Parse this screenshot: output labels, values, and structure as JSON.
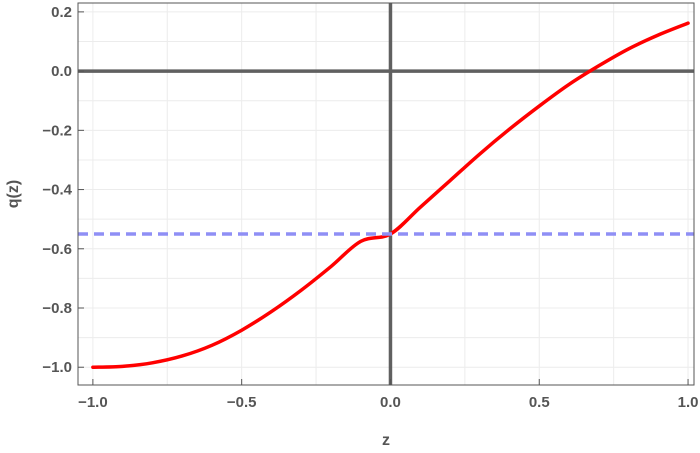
{
  "chart_data": {
    "type": "line",
    "title": "",
    "xlabel": "z",
    "ylabel": "q(z)",
    "xlim": [
      -1.05,
      1.02
    ],
    "ylim": [
      -1.06,
      0.23
    ],
    "grid": true,
    "x_ticks": [
      {
        "value": -1.0,
        "label": "−1.0"
      },
      {
        "value": -0.5,
        "label": "−0.5"
      },
      {
        "value": 0.0,
        "label": "0.0"
      },
      {
        "value": 0.5,
        "label": "0.5"
      },
      {
        "value": 1.0,
        "label": "1.0"
      }
    ],
    "y_ticks": [
      {
        "value": 0.2,
        "label": "0.2"
      },
      {
        "value": 0.0,
        "label": "0.0"
      },
      {
        "value": -0.2,
        "label": "−0.2"
      },
      {
        "value": -0.4,
        "label": "−0.4"
      },
      {
        "value": -0.6,
        "label": "−0.6"
      },
      {
        "value": -0.8,
        "label": "−0.8"
      },
      {
        "value": -1.0,
        "label": "−1.0"
      }
    ],
    "series": [
      {
        "color": "#ff0000",
        "style": "solid",
        "x": [
          -1.0,
          -0.9,
          -0.8,
          -0.7,
          -0.6,
          -0.5,
          -0.4,
          -0.3,
          -0.2,
          -0.1,
          0.0,
          0.1,
          0.2,
          0.3,
          0.4,
          0.5,
          0.6,
          0.7,
          0.8,
          0.9,
          1.0
        ],
        "y": [
          -1.0,
          -0.997,
          -0.985,
          -0.962,
          -0.926,
          -0.875,
          -0.812,
          -0.74,
          -0.66,
          -0.575,
          -0.55,
          -0.46,
          -0.37,
          -0.28,
          -0.196,
          -0.118,
          -0.045,
          0.018,
          0.075,
          0.122,
          0.162
        ]
      },
      {
        "color": "#8f8ff5",
        "style": "dashed",
        "x": [
          -1.05,
          1.02
        ],
        "y": [
          -0.55,
          -0.55
        ]
      }
    ],
    "axes_lines": {
      "x": 0.0,
      "y": 0.0,
      "color": "#606060"
    }
  }
}
